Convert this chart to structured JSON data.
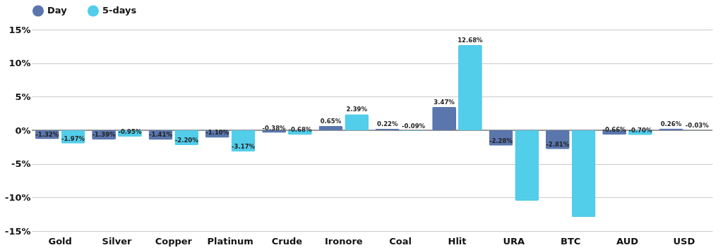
{
  "chart_data": {
    "type": "bar",
    "categories": [
      "Gold",
      "Silver",
      "Copper",
      "Platinum",
      "Crude",
      "Ironore",
      "Coal",
      "Hlit",
      "URA",
      "BTC",
      "AUD",
      "USD"
    ],
    "series": [
      {
        "name": "Day",
        "color": "#5a76ad",
        "values": [
          -1.32,
          -1.39,
          -1.41,
          -1.1,
          -0.38,
          0.65,
          0.22,
          3.47,
          -2.28,
          -2.81,
          -0.66,
          0.26
        ],
        "value_labels": [
          "-1.32%",
          "-1.39%",
          "-1.41%",
          "-1.10%",
          "-0.38%",
          "0.65%",
          "0.22%",
          "3.47%",
          "-2.28%",
          "-2.81%",
          "-0.66%",
          "0.26%"
        ]
      },
      {
        "name": "5-days",
        "color": "#52cdea",
        "values": [
          -1.97,
          -0.95,
          -2.2,
          -3.17,
          -0.68,
          2.39,
          -0.09,
          12.68,
          -10.5,
          -12.9,
          -0.7,
          -0.03
        ],
        "value_labels": [
          "-1.97%",
          "-0.95%",
          "-2.20%",
          "-3.17%",
          "-0.68%",
          "2.39%",
          "-0.09%",
          "12.68%",
          null,
          null,
          "-0.70%",
          "-0.03%"
        ]
      }
    ],
    "ylim": [
      -15,
      15
    ],
    "yticks": [
      {
        "value": -15,
        "label": "-15%"
      },
      {
        "value": -10,
        "label": "-10%"
      },
      {
        "value": -5,
        "label": "-5%"
      },
      {
        "value": 0,
        "label": "0%"
      },
      {
        "value": 5,
        "label": "5%"
      },
      {
        "value": 10,
        "label": "10%"
      },
      {
        "value": 15,
        "label": "15%"
      }
    ],
    "grid": "y",
    "legend": "top"
  }
}
